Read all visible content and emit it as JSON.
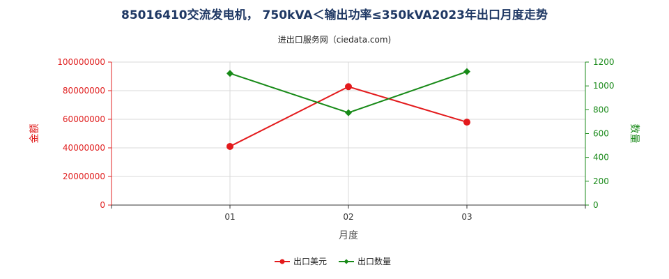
{
  "chart_data": {
    "type": "line",
    "title": "85016410交流发电机， 750kVA＜输出功率≤350kVA2023年出口月度走势",
    "subtitle": "进出口服务网（ciedata.com)",
    "xlabel": "月度",
    "categories": [
      "01",
      "02",
      "03"
    ],
    "y_left": {
      "label": "金额",
      "range": [
        0,
        100000000
      ],
      "ticks": [
        "0",
        "20000000",
        "40000000",
        "60000000",
        "80000000",
        "100000000"
      ],
      "color": "#e02020"
    },
    "y_right": {
      "label": "数量",
      "range": [
        0,
        1200
      ],
      "ticks": [
        "0",
        "200",
        "400",
        "600",
        "800",
        "1000",
        "1200"
      ],
      "color": "#1a8a1a"
    },
    "series": [
      {
        "name": "出口美元",
        "axis": "left",
        "color": "#e31a1c",
        "marker": "circle",
        "values": [
          41000000,
          82800000,
          58000000
        ]
      },
      {
        "name": "出口数量",
        "axis": "right",
        "color": "#178a17",
        "marker": "diamond",
        "values": [
          1105,
          775,
          1120
        ]
      }
    ],
    "grid": true,
    "legend_position": "bottom-center"
  }
}
